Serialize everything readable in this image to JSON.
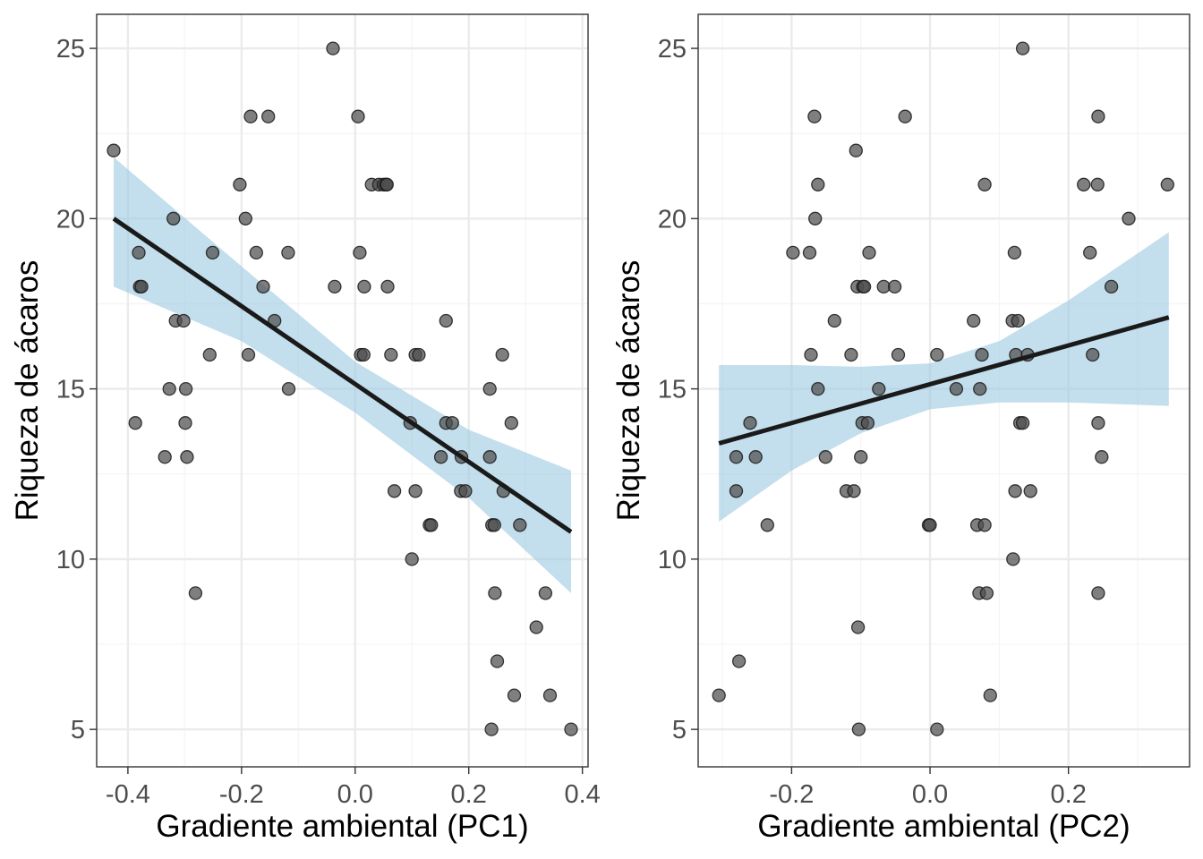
{
  "colors": {
    "point": "#4d4d4d",
    "ribbon": "#9ecae1",
    "fit_line": "#1a1a1a",
    "grid_major": "#ebebeb",
    "grid_minor": "#f5f5f5",
    "axis_text": "#4d4d4d",
    "panel_border": "#333333"
  },
  "chart_data": [
    {
      "type": "scatter",
      "title": "",
      "xlabel": "Gradiente ambiental (PC1)",
      "ylabel": "Riqueza de ácaros",
      "xlim": [
        -0.455,
        0.41
      ],
      "ylim": [
        3.9,
        26.0
      ],
      "x_ticks": [
        -0.4,
        -0.2,
        0.0,
        0.2,
        0.4
      ],
      "x_tick_labels": [
        "-0.4",
        "-0.2",
        "0.0",
        "0.2",
        "0.4"
      ],
      "y_ticks": [
        5,
        10,
        15,
        20,
        25
      ],
      "y_tick_labels": [
        "5",
        "10",
        "15",
        "20",
        "25"
      ],
      "grid": true,
      "fit": {
        "x0": -0.425,
        "y0": 20.0,
        "x1": 0.38,
        "y1": 10.8
      },
      "ribbon": {
        "x": [
          -0.425,
          -0.2,
          0.0,
          0.2,
          0.38
        ],
        "upper": [
          21.8,
          18.6,
          15.8,
          13.8,
          12.6
        ],
        "lower": [
          18.0,
          16.4,
          14.3,
          11.8,
          9.0
        ]
      },
      "points": [
        [
          -0.425,
          22
        ],
        [
          -0.387,
          14
        ],
        [
          -0.381,
          19
        ],
        [
          -0.379,
          18
        ],
        [
          -0.376,
          18
        ],
        [
          -0.335,
          13
        ],
        [
          -0.327,
          15
        ],
        [
          -0.32,
          20
        ],
        [
          -0.316,
          17
        ],
        [
          -0.302,
          17
        ],
        [
          -0.299,
          14
        ],
        [
          -0.298,
          15
        ],
        [
          -0.296,
          13
        ],
        [
          -0.281,
          9
        ],
        [
          -0.256,
          16
        ],
        [
          -0.251,
          19
        ],
        [
          -0.203,
          21
        ],
        [
          -0.193,
          20
        ],
        [
          -0.188,
          16
        ],
        [
          -0.184,
          23
        ],
        [
          -0.174,
          19
        ],
        [
          -0.162,
          18
        ],
        [
          -0.153,
          23
        ],
        [
          -0.142,
          17
        ],
        [
          -0.118,
          19
        ],
        [
          -0.117,
          15
        ],
        [
          -0.039,
          25
        ],
        [
          -0.036,
          18
        ],
        [
          0.005,
          23
        ],
        [
          0.008,
          19
        ],
        [
          0.01,
          16
        ],
        [
          0.015,
          16
        ],
        [
          0.016,
          18
        ],
        [
          0.029,
          21
        ],
        [
          0.042,
          21
        ],
        [
          0.05,
          21
        ],
        [
          0.054,
          21
        ],
        [
          0.056,
          21
        ],
        [
          0.057,
          18
        ],
        [
          0.063,
          16
        ],
        [
          0.069,
          12
        ],
        [
          0.097,
          14
        ],
        [
          0.1,
          10
        ],
        [
          0.106,
          12
        ],
        [
          0.106,
          16
        ],
        [
          0.112,
          16
        ],
        [
          0.131,
          11
        ],
        [
          0.134,
          11
        ],
        [
          0.151,
          13
        ],
        [
          0.16,
          17
        ],
        [
          0.16,
          14
        ],
        [
          0.171,
          14
        ],
        [
          0.186,
          12
        ],
        [
          0.187,
          13
        ],
        [
          0.194,
          12
        ],
        [
          0.237,
          13
        ],
        [
          0.237,
          15
        ],
        [
          0.24,
          5
        ],
        [
          0.241,
          11
        ],
        [
          0.245,
          11
        ],
        [
          0.246,
          9
        ],
        [
          0.25,
          7
        ],
        [
          0.259,
          16
        ],
        [
          0.261,
          12
        ],
        [
          0.275,
          14
        ],
        [
          0.28,
          6
        ],
        [
          0.29,
          11
        ],
        [
          0.319,
          8
        ],
        [
          0.335,
          9
        ],
        [
          0.343,
          6
        ],
        [
          0.38,
          5
        ]
      ]
    },
    {
      "type": "scatter",
      "title": "",
      "xlabel": "Gradiente ambiental (PC2)",
      "ylabel": "Riqueza de ácaros",
      "xlim": [
        -0.335,
        0.375
      ],
      "ylim": [
        3.9,
        26.0
      ],
      "x_ticks": [
        -0.2,
        0.0,
        0.2
      ],
      "x_tick_labels": [
        "-0.2",
        "0.0",
        "0.2"
      ],
      "y_ticks": [
        5,
        10,
        15,
        20,
        25
      ],
      "y_tick_labels": [
        "5",
        "10",
        "15",
        "20",
        "25"
      ],
      "grid": true,
      "fit": {
        "x0": -0.305,
        "y0": 13.4,
        "x1": 0.345,
        "y1": 17.1
      },
      "ribbon": {
        "x": [
          -0.305,
          -0.2,
          -0.1,
          0.0,
          0.1,
          0.2,
          0.345
        ],
        "upper": [
          15.7,
          15.7,
          15.65,
          15.75,
          16.4,
          17.6,
          19.6
        ],
        "lower": [
          11.1,
          12.6,
          13.7,
          14.4,
          14.6,
          14.6,
          14.5
        ]
      },
      "points": [
        [
          -0.305,
          6
        ],
        [
          -0.28,
          13
        ],
        [
          -0.28,
          12
        ],
        [
          -0.276,
          7
        ],
        [
          -0.26,
          14
        ],
        [
          -0.252,
          13
        ],
        [
          -0.235,
          11
        ],
        [
          -0.198,
          19
        ],
        [
          -0.174,
          19
        ],
        [
          -0.172,
          16
        ],
        [
          -0.167,
          23
        ],
        [
          -0.166,
          20
        ],
        [
          -0.162,
          21
        ],
        [
          -0.162,
          15
        ],
        [
          -0.151,
          13
        ],
        [
          -0.138,
          17
        ],
        [
          -0.121,
          12
        ],
        [
          -0.114,
          16
        ],
        [
          -0.11,
          12
        ],
        [
          -0.107,
          22
        ],
        [
          -0.105,
          18
        ],
        [
          -0.104,
          8
        ],
        [
          -0.103,
          5
        ],
        [
          -0.1,
          13
        ],
        [
          -0.098,
          14
        ],
        [
          -0.097,
          18
        ],
        [
          -0.095,
          18
        ],
        [
          -0.09,
          14
        ],
        [
          -0.088,
          19
        ],
        [
          -0.074,
          15
        ],
        [
          -0.067,
          18
        ],
        [
          -0.051,
          18
        ],
        [
          -0.046,
          16
        ],
        [
          -0.036,
          23
        ],
        [
          -0.002,
          11
        ],
        [
          0.0,
          11
        ],
        [
          0.01,
          5
        ],
        [
          0.01,
          16
        ],
        [
          0.038,
          15
        ],
        [
          0.063,
          17
        ],
        [
          0.068,
          11
        ],
        [
          0.071,
          9
        ],
        [
          0.072,
          15
        ],
        [
          0.075,
          16
        ],
        [
          0.079,
          21
        ],
        [
          0.079,
          11
        ],
        [
          0.082,
          9
        ],
        [
          0.087,
          6
        ],
        [
          0.119,
          17
        ],
        [
          0.12,
          10
        ],
        [
          0.122,
          19
        ],
        [
          0.123,
          12
        ],
        [
          0.124,
          16
        ],
        [
          0.127,
          17
        ],
        [
          0.13,
          14
        ],
        [
          0.134,
          14
        ],
        [
          0.134,
          25
        ],
        [
          0.141,
          16
        ],
        [
          0.145,
          12
        ],
        [
          0.222,
          21
        ],
        [
          0.231,
          19
        ],
        [
          0.235,
          16
        ],
        [
          0.242,
          21
        ],
        [
          0.243,
          14
        ],
        [
          0.243,
          23
        ],
        [
          0.243,
          9
        ],
        [
          0.248,
          13
        ],
        [
          0.262,
          18
        ],
        [
          0.287,
          20
        ],
        [
          0.343,
          21
        ]
      ]
    }
  ]
}
